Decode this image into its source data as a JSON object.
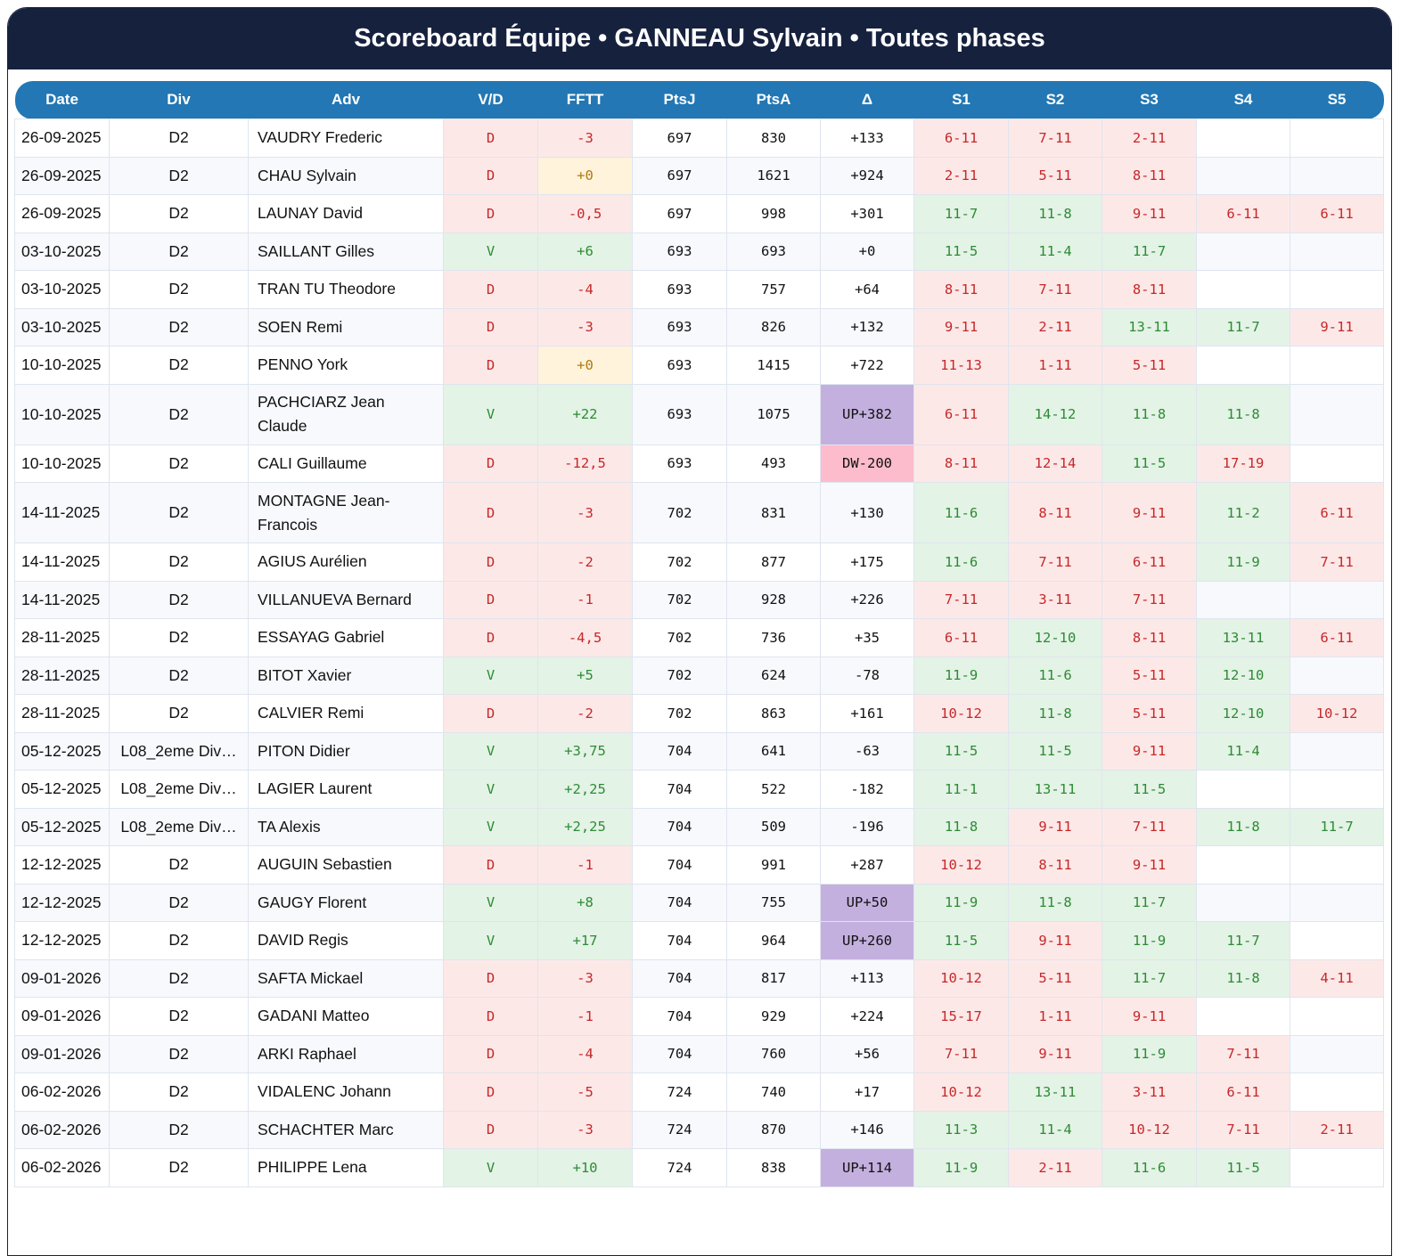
{
  "title": "Scoreboard Équipe • GANNEAU Sylvain • Toutes phases",
  "columns": [
    "Date",
    "Div",
    "Adv",
    "V/D",
    "FFTT",
    "PtsJ",
    "PtsA",
    "Δ",
    "S1",
    "S2",
    "S3",
    "S4",
    "S5"
  ],
  "colors": {
    "header_bg": "#16213e",
    "table_header_bg": "#2277b4",
    "loss_bg": "#fde8e8",
    "loss_text": "#c62828",
    "win_bg": "#e3f3e6",
    "win_text": "#2e8b34",
    "neutral_bg": "#fff3dc",
    "up_bg": "#c4b0df",
    "down_bg": "#fdbccb"
  },
  "rows": [
    {
      "date": "26-09-2025",
      "div": "D2",
      "adv": "VAUDRY Frederic",
      "vd": "D",
      "fftt": "-3",
      "ptsj": "697",
      "ptsa": "830",
      "delta": "+133",
      "sets": [
        "6-11",
        "7-11",
        "2-11",
        "",
        ""
      ]
    },
    {
      "date": "26-09-2025",
      "div": "D2",
      "adv": "CHAU Sylvain",
      "vd": "D",
      "fftt": "+0",
      "ptsj": "697",
      "ptsa": "1621",
      "delta": "+924",
      "sets": [
        "2-11",
        "5-11",
        "8-11",
        "",
        ""
      ]
    },
    {
      "date": "26-09-2025",
      "div": "D2",
      "adv": "LAUNAY David",
      "vd": "D",
      "fftt": "-0,5",
      "ptsj": "697",
      "ptsa": "998",
      "delta": "+301",
      "sets": [
        "11-7",
        "11-8",
        "9-11",
        "6-11",
        "6-11"
      ]
    },
    {
      "date": "03-10-2025",
      "div": "D2",
      "adv": "SAILLANT Gilles",
      "vd": "V",
      "fftt": "+6",
      "ptsj": "693",
      "ptsa": "693",
      "delta": "+0",
      "sets": [
        "11-5",
        "11-4",
        "11-7",
        "",
        ""
      ]
    },
    {
      "date": "03-10-2025",
      "div": "D2",
      "adv": "TRAN TU Theodore",
      "vd": "D",
      "fftt": "-4",
      "ptsj": "693",
      "ptsa": "757",
      "delta": "+64",
      "sets": [
        "8-11",
        "7-11",
        "8-11",
        "",
        ""
      ]
    },
    {
      "date": "03-10-2025",
      "div": "D2",
      "adv": "SOEN Remi",
      "vd": "D",
      "fftt": "-3",
      "ptsj": "693",
      "ptsa": "826",
      "delta": "+132",
      "sets": [
        "9-11",
        "2-11",
        "13-11",
        "11-7",
        "9-11"
      ]
    },
    {
      "date": "10-10-2025",
      "div": "D2",
      "adv": "PENNO York",
      "vd": "D",
      "fftt": "+0",
      "ptsj": "693",
      "ptsa": "1415",
      "delta": "+722",
      "sets": [
        "11-13",
        "1-11",
        "5-11",
        "",
        ""
      ]
    },
    {
      "date": "10-10-2025",
      "div": "D2",
      "adv": "PACHCIARZ Jean Claude",
      "vd": "V",
      "fftt": "+22",
      "ptsj": "693",
      "ptsa": "1075",
      "delta": "UP+382",
      "sets": [
        "6-11",
        "14-12",
        "11-8",
        "11-8",
        ""
      ]
    },
    {
      "date": "10-10-2025",
      "div": "D2",
      "adv": "CALI Guillaume",
      "vd": "D",
      "fftt": "-12,5",
      "ptsj": "693",
      "ptsa": "493",
      "delta": "DW-200",
      "sets": [
        "8-11",
        "12-14",
        "11-5",
        "17-19",
        ""
      ]
    },
    {
      "date": "14-11-2025",
      "div": "D2",
      "adv": "MONTAGNE Jean-Francois",
      "vd": "D",
      "fftt": "-3",
      "ptsj": "702",
      "ptsa": "831",
      "delta": "+130",
      "sets": [
        "11-6",
        "8-11",
        "9-11",
        "11-2",
        "6-11"
      ]
    },
    {
      "date": "14-11-2025",
      "div": "D2",
      "adv": "AGIUS Aurélien",
      "vd": "D",
      "fftt": "-2",
      "ptsj": "702",
      "ptsa": "877",
      "delta": "+175",
      "sets": [
        "11-6",
        "7-11",
        "6-11",
        "11-9",
        "7-11"
      ]
    },
    {
      "date": "14-11-2025",
      "div": "D2",
      "adv": "VILLANUEVA Bernard",
      "vd": "D",
      "fftt": "-1",
      "ptsj": "702",
      "ptsa": "928",
      "delta": "+226",
      "sets": [
        "7-11",
        "3-11",
        "7-11",
        "",
        ""
      ]
    },
    {
      "date": "28-11-2025",
      "div": "D2",
      "adv": "ESSAYAG Gabriel",
      "vd": "D",
      "fftt": "-4,5",
      "ptsj": "702",
      "ptsa": "736",
      "delta": "+35",
      "sets": [
        "6-11",
        "12-10",
        "8-11",
        "13-11",
        "6-11"
      ]
    },
    {
      "date": "28-11-2025",
      "div": "D2",
      "adv": "BITOT Xavier",
      "vd": "V",
      "fftt": "+5",
      "ptsj": "702",
      "ptsa": "624",
      "delta": "-78",
      "sets": [
        "11-9",
        "11-6",
        "5-11",
        "12-10",
        ""
      ]
    },
    {
      "date": "28-11-2025",
      "div": "D2",
      "adv": "CALVIER Remi",
      "vd": "D",
      "fftt": "-2",
      "ptsj": "702",
      "ptsa": "863",
      "delta": "+161",
      "sets": [
        "10-12",
        "11-8",
        "5-11",
        "12-10",
        "10-12"
      ]
    },
    {
      "date": "05-12-2025",
      "div": "L08_2eme Div…",
      "adv": "PITON Didier",
      "vd": "V",
      "fftt": "+3,75",
      "ptsj": "704",
      "ptsa": "641",
      "delta": "-63",
      "sets": [
        "11-5",
        "11-5",
        "9-11",
        "11-4",
        ""
      ]
    },
    {
      "date": "05-12-2025",
      "div": "L08_2eme Div…",
      "adv": "LAGIER Laurent",
      "vd": "V",
      "fftt": "+2,25",
      "ptsj": "704",
      "ptsa": "522",
      "delta": "-182",
      "sets": [
        "11-1",
        "13-11",
        "11-5",
        "",
        ""
      ]
    },
    {
      "date": "05-12-2025",
      "div": "L08_2eme Div…",
      "adv": "TA Alexis",
      "vd": "V",
      "fftt": "+2,25",
      "ptsj": "704",
      "ptsa": "509",
      "delta": "-196",
      "sets": [
        "11-8",
        "9-11",
        "7-11",
        "11-8",
        "11-7"
      ]
    },
    {
      "date": "12-12-2025",
      "div": "D2",
      "adv": "AUGUIN Sebastien",
      "vd": "D",
      "fftt": "-1",
      "ptsj": "704",
      "ptsa": "991",
      "delta": "+287",
      "sets": [
        "10-12",
        "8-11",
        "9-11",
        "",
        ""
      ]
    },
    {
      "date": "12-12-2025",
      "div": "D2",
      "adv": "GAUGY Florent",
      "vd": "V",
      "fftt": "+8",
      "ptsj": "704",
      "ptsa": "755",
      "delta": "UP+50",
      "sets": [
        "11-9",
        "11-8",
        "11-7",
        "",
        ""
      ]
    },
    {
      "date": "12-12-2025",
      "div": "D2",
      "adv": "DAVID Regis",
      "vd": "V",
      "fftt": "+17",
      "ptsj": "704",
      "ptsa": "964",
      "delta": "UP+260",
      "sets": [
        "11-5",
        "9-11",
        "11-9",
        "11-7",
        ""
      ]
    },
    {
      "date": "09-01-2026",
      "div": "D2",
      "adv": "SAFTA Mickael",
      "vd": "D",
      "fftt": "-3",
      "ptsj": "704",
      "ptsa": "817",
      "delta": "+113",
      "sets": [
        "10-12",
        "5-11",
        "11-7",
        "11-8",
        "4-11"
      ]
    },
    {
      "date": "09-01-2026",
      "div": "D2",
      "adv": "GADANI Matteo",
      "vd": "D",
      "fftt": "-1",
      "ptsj": "704",
      "ptsa": "929",
      "delta": "+224",
      "sets": [
        "15-17",
        "1-11",
        "9-11",
        "",
        ""
      ]
    },
    {
      "date": "09-01-2026",
      "div": "D2",
      "adv": "ARKI Raphael",
      "vd": "D",
      "fftt": "-4",
      "ptsj": "704",
      "ptsa": "760",
      "delta": "+56",
      "sets": [
        "7-11",
        "9-11",
        "11-9",
        "7-11",
        ""
      ]
    },
    {
      "date": "06-02-2026",
      "div": "D2",
      "adv": "VIDALENC Johann",
      "vd": "D",
      "fftt": "-5",
      "ptsj": "724",
      "ptsa": "740",
      "delta": "+17",
      "sets": [
        "10-12",
        "13-11",
        "3-11",
        "6-11",
        ""
      ]
    },
    {
      "date": "06-02-2026",
      "div": "D2",
      "adv": "SCHACHTER Marc",
      "vd": "D",
      "fftt": "-3",
      "ptsj": "724",
      "ptsa": "870",
      "delta": "+146",
      "sets": [
        "11-3",
        "11-4",
        "10-12",
        "7-11",
        "2-11"
      ]
    },
    {
      "date": "06-02-2026",
      "div": "D2",
      "adv": "PHILIPPE Lena",
      "vd": "V",
      "fftt": "+10",
      "ptsj": "724",
      "ptsa": "838",
      "delta": "UP+114",
      "sets": [
        "11-9",
        "2-11",
        "11-6",
        "11-5",
        ""
      ]
    }
  ]
}
